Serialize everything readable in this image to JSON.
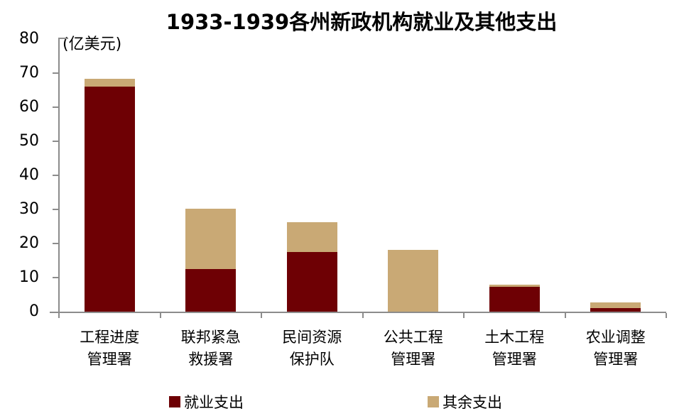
{
  "chart_data": {
    "type": "bar",
    "stacked": true,
    "title": "1933-1939各州新政机构就业及其他支出",
    "ylabel": "(亿美元)",
    "xlabel": "",
    "ylim": [
      0,
      80
    ],
    "ytick_step": 10,
    "grid": false,
    "legend_position": "bottom",
    "categories": [
      "工程进度\n管理署",
      "联邦紧急\n救援署",
      "民间资源\n保护队",
      "公共工程\n管理署",
      "土木工程\n管理署",
      "农业调整\n管理署"
    ],
    "series": [
      {
        "name": "就业支出",
        "color": "#6E0004",
        "values": [
          66,
          12.4,
          17.4,
          0,
          7.2,
          1
        ]
      },
      {
        "name": "其余支出",
        "color": "#C9A975",
        "values": [
          2.3,
          17.9,
          8.9,
          18.1,
          0.8,
          1.8
        ]
      }
    ],
    "totals": [
      68.3,
      30.3,
      26.3,
      18.1,
      8.0,
      2.8
    ],
    "axis_color": "#8C8C8C",
    "text_color": "#000000"
  }
}
